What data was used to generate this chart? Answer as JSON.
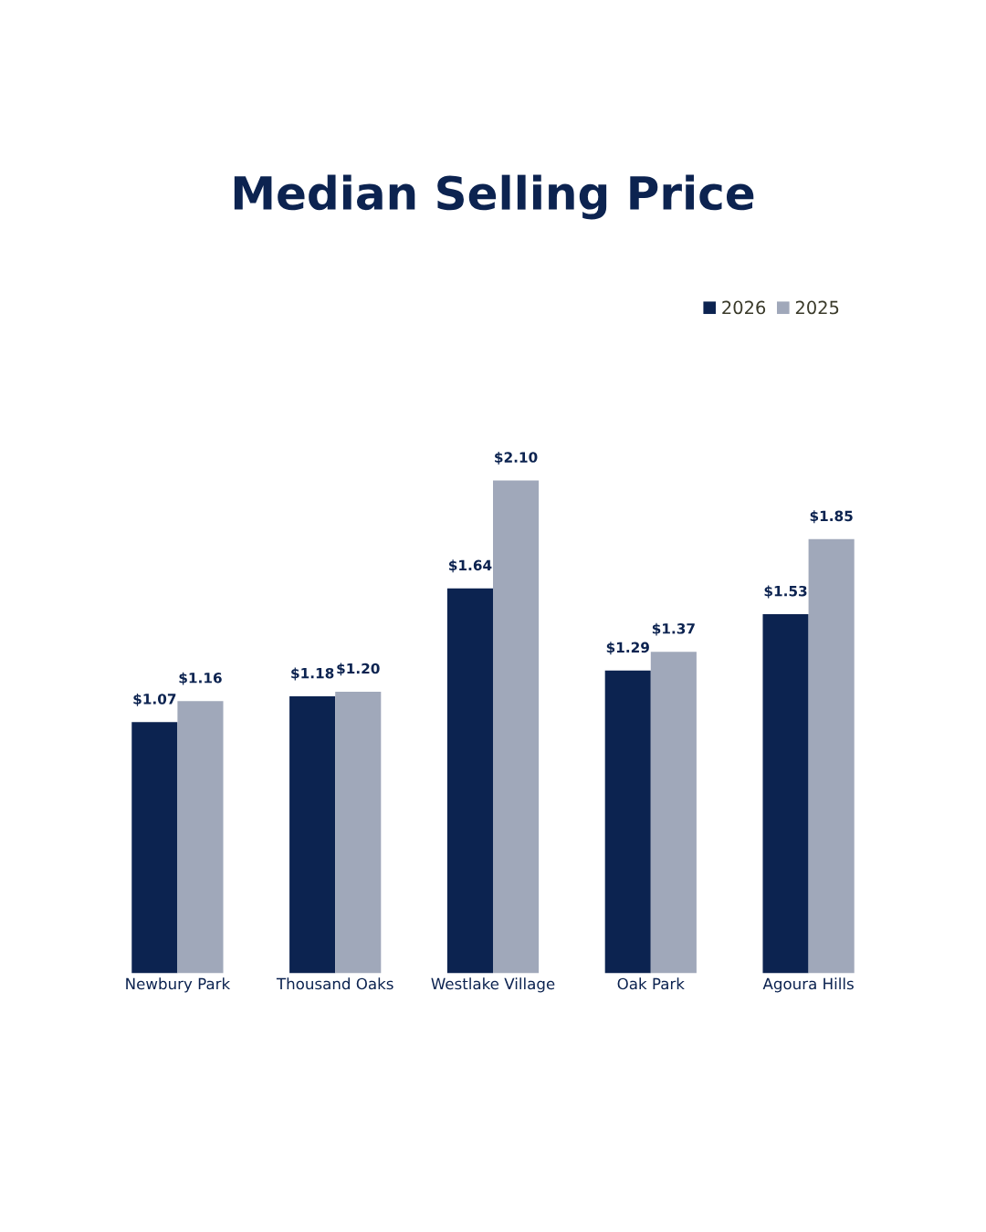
{
  "chart_data": {
    "type": "bar",
    "title": "Median Selling Price",
    "categories": [
      "Newbury Park",
      "Thousand Oaks",
      "Westlake Village",
      "Oak Park",
      "Agoura Hills"
    ],
    "series": [
      {
        "name": "2026",
        "color": "#0c2350",
        "values": [
          1.07,
          1.18,
          1.64,
          1.29,
          1.53
        ],
        "value_labels": [
          "$1.07",
          "$1.18",
          "$1.64",
          "$1.29",
          "$1.53"
        ]
      },
      {
        "name": "2025",
        "color": "#a0a8ba",
        "values": [
          1.16,
          1.2,
          2.1,
          1.37,
          1.85
        ],
        "value_labels": [
          "$1.16",
          "$1.20",
          "$2.10",
          "$1.37",
          "$1.85"
        ]
      }
    ],
    "tick_labels": "x",
    "legend": "top right",
    "grid": false
  }
}
